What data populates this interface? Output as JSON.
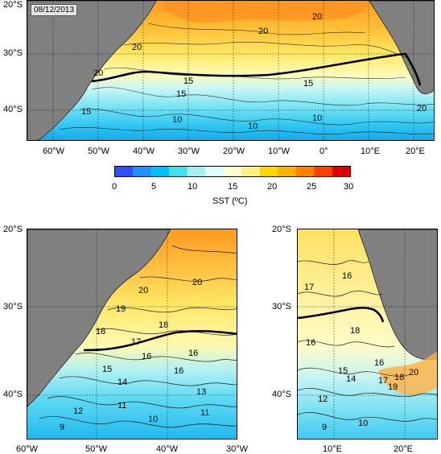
{
  "date": "08/12/2013",
  "top_map": {
    "y_labels": [
      "20°S",
      "30°S",
      "40°S"
    ],
    "x_labels": [
      "60°W",
      "50°W",
      "40°W",
      "30°W",
      "20°W",
      "10°W",
      "0°",
      "10°E",
      "20°E"
    ],
    "contour_labels": [
      "20",
      "20",
      "20",
      "20",
      "15",
      "15",
      "15",
      "15",
      "10",
      "10",
      "10",
      "20"
    ]
  },
  "colorbar": {
    "ticks": [
      "0",
      "5",
      "10",
      "15",
      "20",
      "25",
      "30"
    ],
    "label": "SST (ºC)",
    "colors": [
      "#2f4fff",
      "#1e90ff",
      "#00bfff",
      "#40e0f0",
      "#a8f0f0",
      "#e0fcfc",
      "#fffdd0",
      "#fff080",
      "#ffd700",
      "#ffb000",
      "#ff8000",
      "#ff4000",
      "#e00000"
    ]
  },
  "left_map": {
    "y_labels": [
      "20°S",
      "30°S",
      "40°S"
    ],
    "x_labels": [
      "60°W",
      "50°W",
      "40°W",
      "30°W"
    ],
    "contour_labels": [
      "20",
      "20",
      "19",
      "18",
      "18",
      "17",
      "16",
      "16",
      "15",
      "14",
      "16",
      "13",
      "12",
      "11",
      "10",
      "11",
      "9"
    ]
  },
  "right_map": {
    "y_labels": [
      "20°S",
      "30°S",
      "40°S"
    ],
    "x_labels": [
      "10°E",
      "20°E"
    ],
    "contour_labels": [
      "17",
      "16",
      "18",
      "16",
      "15",
      "14",
      "17",
      "16",
      "18",
      "19",
      "20",
      "12",
      "10",
      "9"
    ]
  }
}
